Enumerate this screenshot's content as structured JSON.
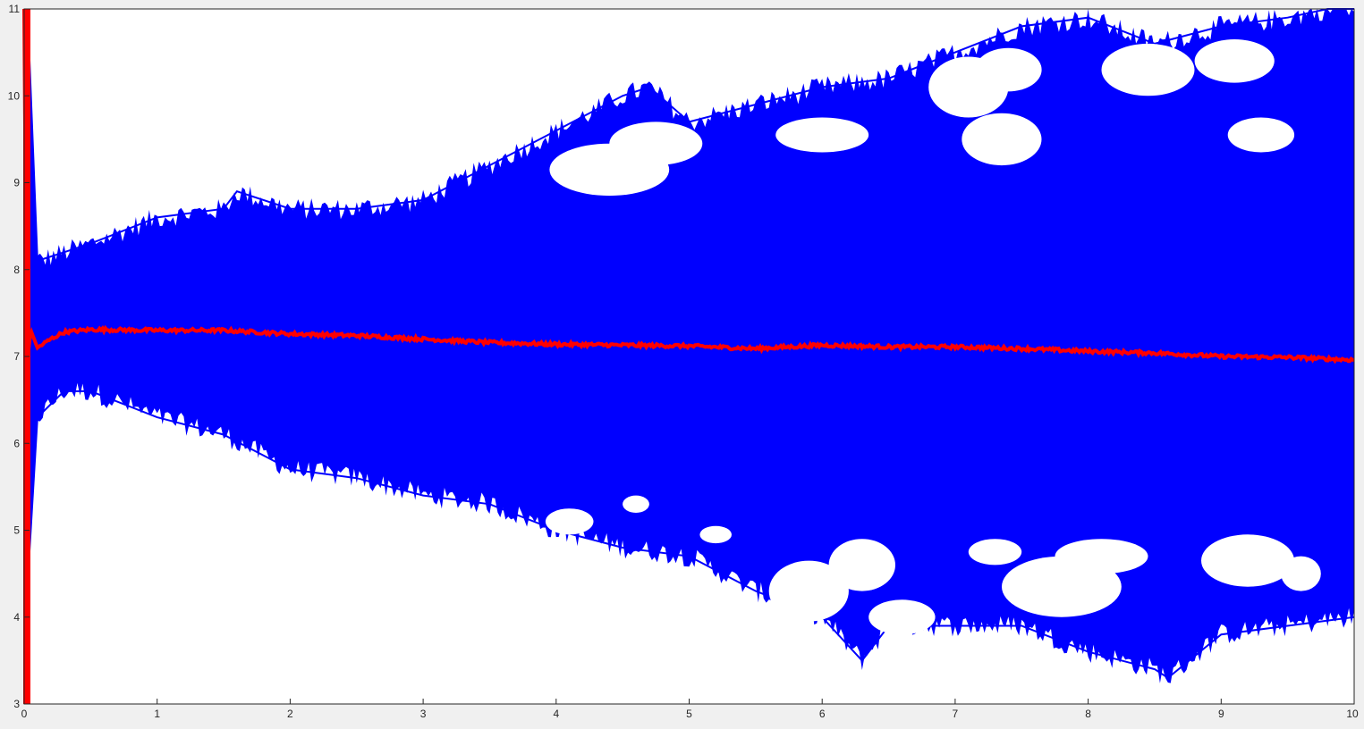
{
  "chart_data": {
    "type": "line",
    "title": "",
    "xlabel": "",
    "ylabel": "",
    "xlim": [
      0,
      10
    ],
    "ylim": [
      3,
      11
    ],
    "xticks": [
      0,
      1,
      2,
      3,
      4,
      5,
      6,
      7,
      8,
      9,
      10
    ],
    "yticks": [
      3,
      4,
      5,
      6,
      7,
      8,
      9,
      10,
      11
    ],
    "grid": false,
    "legend": "none",
    "series": [
      {
        "role": "paths-upper-envelope",
        "color": "#0000ff",
        "x": [
          0,
          0.03,
          0.1,
          0.3,
          0.5,
          1.0,
          1.5,
          1.6,
          2.0,
          2.5,
          3.0,
          3.5,
          4.0,
          4.5,
          4.7,
          5.0,
          5.5,
          6.0,
          6.5,
          7.0,
          7.5,
          8.0,
          8.5,
          9.0,
          9.5,
          9.8,
          10.0
        ],
        "y": [
          11.0,
          10.8,
          8.1,
          8.2,
          8.3,
          8.6,
          8.7,
          8.9,
          8.7,
          8.7,
          8.8,
          9.2,
          9.6,
          10.0,
          10.1,
          9.7,
          9.9,
          10.1,
          10.2,
          10.5,
          10.8,
          10.9,
          10.6,
          10.8,
          10.9,
          11.0,
          11.0
        ]
      },
      {
        "role": "paths-lower-envelope",
        "color": "#0000ff",
        "x": [
          0,
          0.03,
          0.1,
          0.3,
          0.5,
          1.0,
          1.5,
          2.0,
          2.5,
          3.0,
          3.5,
          4.0,
          4.5,
          5.0,
          5.5,
          6.0,
          6.3,
          6.5,
          7.0,
          7.5,
          8.0,
          8.5,
          8.6,
          9.0,
          9.5,
          10.0
        ],
        "y": [
          3.0,
          4.5,
          6.3,
          6.6,
          6.6,
          6.3,
          6.1,
          5.7,
          5.6,
          5.4,
          5.3,
          5.0,
          4.8,
          4.7,
          4.3,
          4.0,
          3.5,
          3.9,
          3.9,
          3.9,
          3.6,
          3.4,
          3.3,
          3.8,
          3.9,
          4.0
        ]
      },
      {
        "role": "mean",
        "color": "#ff0000",
        "x": [
          0,
          0.02,
          0.05,
          0.1,
          0.2,
          0.3,
          0.5,
          1.0,
          1.5,
          2.0,
          2.5,
          3.0,
          3.5,
          4.0,
          4.5,
          5.0,
          5.5,
          6.0,
          6.5,
          7.0,
          7.5,
          8.0,
          8.5,
          9.0,
          9.5,
          10.0
        ],
        "y": [
          11.0,
          6.9,
          7.3,
          7.1,
          7.2,
          7.28,
          7.31,
          7.3,
          7.3,
          7.26,
          7.24,
          7.2,
          7.16,
          7.14,
          7.13,
          7.12,
          7.09,
          7.13,
          7.11,
          7.11,
          7.09,
          7.06,
          7.04,
          7.0,
          6.99,
          6.96
        ]
      }
    ],
    "colors": {
      "paths": "#0000ff",
      "mean": "#ff0000",
      "background": "#ffffff",
      "figure": "#f0f0f0"
    }
  }
}
